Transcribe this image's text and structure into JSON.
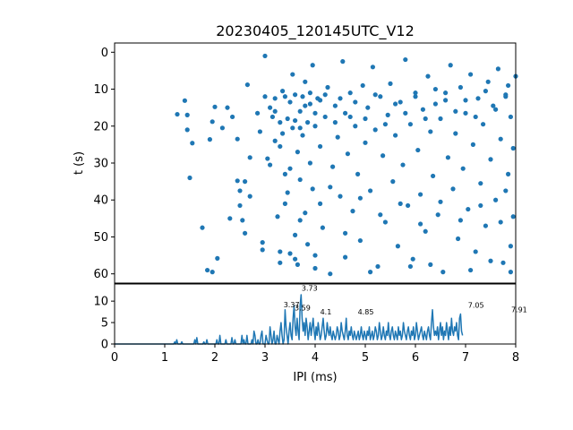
{
  "chart_data": [
    {
      "type": "scatter",
      "title": "20230405_120145UTC_V12",
      "xlabel": "",
      "ylabel": "t (s)",
      "xlim": [
        0,
        8
      ],
      "ylim": [
        62.5,
        -2.5
      ],
      "y_inverted": true,
      "yticks": [
        0,
        10,
        20,
        30,
        40,
        50,
        60
      ],
      "color": "#1f77b4",
      "points": [
        [
          1.25,
          16.8
        ],
        [
          1.4,
          13.1
        ],
        [
          1.45,
          21.0
        ],
        [
          1.5,
          34.0
        ],
        [
          1.55,
          24.6
        ],
        [
          1.45,
          17.0
        ],
        [
          1.75,
          47.5
        ],
        [
          1.85,
          59.0
        ],
        [
          1.9,
          23.6
        ],
        [
          1.95,
          59.5
        ],
        [
          1.95,
          18.8
        ],
        [
          2.0,
          14.8
        ],
        [
          2.05,
          55.8
        ],
        [
          2.15,
          20.5
        ],
        [
          2.25,
          15.0
        ],
        [
          2.3,
          45.0
        ],
        [
          2.35,
          17.5
        ],
        [
          2.45,
          23.5
        ],
        [
          2.45,
          34.8
        ],
        [
          2.5,
          41.5
        ],
        [
          2.5,
          37.5
        ],
        [
          2.55,
          45.5
        ],
        [
          2.6,
          49.0
        ],
        [
          2.6,
          35.0
        ],
        [
          2.65,
          8.8
        ],
        [
          2.7,
          39.0
        ],
        [
          2.7,
          28.5
        ],
        [
          2.85,
          16.5
        ],
        [
          2.9,
          21.5
        ],
        [
          2.95,
          53.5
        ],
        [
          2.95,
          51.5
        ],
        [
          3.0,
          12.0
        ],
        [
          3.0,
          1.0
        ],
        [
          3.05,
          28.8
        ],
        [
          3.1,
          15.0
        ],
        [
          3.1,
          30.5
        ],
        [
          3.15,
          17.5
        ],
        [
          3.2,
          24.0
        ],
        [
          3.2,
          12.5
        ],
        [
          3.25,
          44.5
        ],
        [
          3.3,
          25.5
        ],
        [
          3.3,
          54.0
        ],
        [
          3.35,
          22.0
        ],
        [
          3.35,
          10.5
        ],
        [
          3.4,
          33.0
        ],
        [
          3.4,
          41.0
        ],
        [
          3.45,
          18.0
        ],
        [
          3.45,
          38.0
        ],
        [
          3.5,
          13.5
        ],
        [
          3.5,
          54.5
        ],
        [
          3.55,
          20.5
        ],
        [
          3.55,
          6.0
        ],
        [
          3.6,
          49.5
        ],
        [
          3.6,
          11.5
        ],
        [
          3.65,
          27.0
        ],
        [
          3.65,
          57.5
        ],
        [
          3.7,
          16.0
        ],
        [
          3.7,
          34.5
        ],
        [
          3.75,
          12.0
        ],
        [
          3.75,
          22.5
        ],
        [
          3.8,
          8.0
        ],
        [
          3.8,
          43.5
        ],
        [
          3.85,
          19.0
        ],
        [
          3.85,
          52.0
        ],
        [
          3.9,
          30.0
        ],
        [
          3.9,
          14.0
        ],
        [
          3.95,
          37.0
        ],
        [
          3.95,
          3.5
        ],
        [
          4.0,
          20.0
        ],
        [
          4.0,
          55.0
        ],
        [
          4.05,
          12.5
        ],
        [
          4.1,
          25.5
        ],
        [
          4.15,
          47.5
        ],
        [
          4.2,
          17.5
        ],
        [
          4.25,
          9.5
        ],
        [
          4.3,
          60.0
        ],
        [
          4.35,
          31.0
        ],
        [
          4.4,
          14.5
        ],
        [
          4.45,
          23.0
        ],
        [
          4.5,
          39.0
        ],
        [
          4.55,
          2.5
        ],
        [
          4.6,
          16.5
        ],
        [
          4.6,
          55.5
        ],
        [
          4.65,
          27.5
        ],
        [
          4.7,
          11.0
        ],
        [
          4.75,
          43.0
        ],
        [
          4.8,
          20.0
        ],
        [
          4.85,
          33.0
        ],
        [
          4.9,
          51.0
        ],
        [
          4.95,
          9.0
        ],
        [
          5.0,
          24.5
        ],
        [
          5.05,
          15.0
        ],
        [
          5.1,
          37.5
        ],
        [
          5.15,
          4.0
        ],
        [
          5.2,
          21.0
        ],
        [
          5.25,
          58.0
        ],
        [
          5.3,
          12.0
        ],
        [
          5.35,
          28.0
        ],
        [
          5.4,
          46.0
        ],
        [
          5.45,
          17.0
        ],
        [
          5.5,
          8.5
        ],
        [
          5.55,
          35.0
        ],
        [
          5.6,
          22.5
        ],
        [
          5.65,
          52.5
        ],
        [
          5.7,
          13.5
        ],
        [
          5.75,
          30.5
        ],
        [
          5.8,
          2.0
        ],
        [
          5.85,
          41.5
        ],
        [
          5.9,
          19.5
        ],
        [
          5.95,
          56.0
        ],
        [
          6.0,
          11.0
        ],
        [
          6.05,
          26.5
        ],
        [
          6.1,
          38.5
        ],
        [
          6.15,
          15.5
        ],
        [
          6.2,
          48.5
        ],
        [
          6.25,
          6.5
        ],
        [
          6.3,
          21.5
        ],
        [
          6.35,
          33.5
        ],
        [
          6.4,
          10.0
        ],
        [
          6.45,
          44.0
        ],
        [
          6.5,
          18.0
        ],
        [
          6.55,
          59.5
        ],
        [
          6.6,
          13.0
        ],
        [
          6.65,
          28.5
        ],
        [
          6.7,
          3.5
        ],
        [
          6.75,
          37.0
        ],
        [
          6.8,
          22.0
        ],
        [
          6.85,
          50.5
        ],
        [
          6.9,
          9.5
        ],
        [
          6.95,
          31.5
        ],
        [
          7.0,
          16.5
        ],
        [
          7.05,
          42.5
        ],
        [
          7.1,
          6.0
        ],
        [
          7.15,
          25.0
        ],
        [
          7.2,
          54.0
        ],
        [
          7.25,
          12.5
        ],
        [
          7.3,
          35.5
        ],
        [
          7.35,
          19.5
        ],
        [
          7.4,
          47.0
        ],
        [
          7.45,
          8.0
        ],
        [
          7.5,
          29.0
        ],
        [
          7.55,
          14.5
        ],
        [
          7.6,
          40.0
        ],
        [
          7.65,
          4.5
        ],
        [
          7.7,
          23.5
        ],
        [
          7.75,
          57.0
        ],
        [
          7.8,
          11.5
        ],
        [
          7.85,
          33.0
        ],
        [
          7.9,
          17.5
        ],
        [
          7.95,
          44.5
        ],
        [
          8.0,
          6.5
        ],
        [
          7.95,
          26.0
        ],
        [
          7.9,
          52.5
        ],
        [
          7.85,
          9.0
        ],
        [
          7.8,
          37.5
        ],
        [
          3.2,
          16.0
        ],
        [
          3.3,
          19.0
        ],
        [
          3.4,
          12.0
        ],
        [
          3.6,
          18.5
        ],
        [
          3.7,
          20.5
        ],
        [
          3.8,
          14.5
        ],
        [
          3.9,
          11.0
        ],
        [
          4.0,
          16.5
        ],
        [
          4.1,
          13.0
        ],
        [
          4.2,
          11.5
        ],
        [
          4.4,
          19.0
        ],
        [
          4.5,
          12.5
        ],
        [
          4.7,
          17.5
        ],
        [
          4.8,
          13.5
        ],
        [
          5.0,
          18.0
        ],
        [
          5.2,
          11.5
        ],
        [
          5.4,
          19.5
        ],
        [
          5.6,
          14.0
        ],
        [
          5.8,
          16.5
        ],
        [
          6.0,
          12.0
        ],
        [
          6.2,
          18.0
        ],
        [
          6.4,
          14.0
        ],
        [
          6.6,
          11.0
        ],
        [
          6.8,
          16.0
        ],
        [
          7.0,
          13.0
        ],
        [
          7.2,
          17.5
        ],
        [
          7.4,
          10.5
        ],
        [
          7.6,
          15.5
        ],
        [
          7.8,
          12.0
        ],
        [
          3.5,
          31.5
        ],
        [
          3.7,
          45.5
        ],
        [
          4.1,
          41.0
        ],
        [
          4.3,
          36.5
        ],
        [
          4.6,
          49.0
        ],
        [
          4.9,
          39.5
        ],
        [
          5.3,
          44.0
        ],
        [
          5.7,
          41.0
        ],
        [
          6.1,
          46.5
        ],
        [
          6.5,
          40.5
        ],
        [
          6.9,
          45.5
        ],
        [
          7.3,
          41.5
        ],
        [
          7.7,
          46.0
        ],
        [
          3.3,
          57.0
        ],
        [
          3.6,
          56.0
        ],
        [
          4.0,
          58.5
        ],
        [
          5.1,
          59.5
        ],
        [
          5.9,
          58.0
        ],
        [
          6.3,
          57.5
        ],
        [
          7.1,
          59.0
        ],
        [
          7.5,
          56.5
        ],
        [
          7.9,
          59.5
        ]
      ]
    },
    {
      "type": "line",
      "title": "",
      "xlabel": "IPI (ms)",
      "ylabel": "",
      "xlim": [
        0,
        8
      ],
      "ylim": [
        0,
        14
      ],
      "xticks": [
        0,
        1,
        2,
        3,
        4,
        5,
        6,
        7,
        8
      ],
      "yticks": [
        0,
        5,
        10
      ],
      "color": "#1f77b4",
      "x_step": 0.02,
      "values": [
        0,
        0,
        0,
        0,
        0,
        0,
        0,
        0,
        0,
        0,
        0,
        0,
        0,
        0,
        0,
        0,
        0,
        0,
        0,
        0,
        0,
        0,
        0,
        0,
        0,
        0,
        0,
        0,
        0,
        0,
        0,
        0,
        0,
        0,
        0,
        0,
        0,
        0,
        0,
        0,
        0,
        0,
        0,
        0,
        0,
        0,
        0,
        0,
        0,
        0,
        0,
        0,
        0,
        0,
        0,
        0,
        0,
        0,
        0,
        0,
        0.5,
        0,
        1,
        0,
        0,
        0,
        0,
        0.5,
        0,
        0,
        0,
        0,
        0,
        0,
        0,
        0,
        0,
        0,
        0,
        0,
        1,
        0,
        1.5,
        0,
        0,
        0,
        0,
        0,
        0,
        0.5,
        0,
        0,
        1,
        0,
        0,
        0,
        0,
        0,
        0,
        0,
        0,
        0,
        1,
        0,
        0,
        2,
        0,
        0,
        0,
        0,
        0,
        1,
        0,
        0,
        0,
        0,
        0,
        1.5,
        0,
        0,
        1,
        0,
        0,
        0,
        0,
        0,
        0,
        2,
        0,
        1,
        0,
        0,
        2,
        0,
        0,
        0,
        0,
        1,
        0,
        3,
        2,
        0,
        0,
        1,
        0,
        0,
        2,
        3,
        0,
        0,
        0,
        2,
        1,
        0,
        0,
        4,
        2,
        0,
        1,
        3,
        0,
        0,
        2,
        1,
        0,
        3,
        5,
        2,
        0,
        1,
        8,
        4,
        2,
        0,
        3,
        5,
        2,
        1,
        6,
        9,
        4,
        2,
        6,
        3,
        1,
        9,
        11.5,
        6,
        3,
        5,
        2,
        6,
        4,
        1,
        3,
        5,
        2,
        4,
        6,
        3,
        1,
        4,
        2,
        5,
        3,
        1,
        2,
        4,
        6,
        3,
        1,
        2,
        5,
        3,
        2,
        4,
        2,
        1,
        3,
        2,
        1,
        2,
        4,
        3,
        1,
        2,
        5,
        3,
        2,
        1,
        3,
        6,
        2,
        1,
        3,
        2,
        4,
        2,
        1,
        3,
        2,
        1,
        2,
        3,
        1,
        2,
        4,
        2,
        1,
        3,
        2,
        1,
        3,
        2,
        4,
        1,
        2,
        3,
        1,
        2,
        4,
        3,
        1,
        2,
        5,
        3,
        1,
        2,
        4,
        2,
        1,
        3,
        2,
        5,
        2,
        1,
        3,
        4,
        2,
        1,
        3,
        2,
        1,
        4,
        2,
        3,
        1,
        2,
        5,
        3,
        2,
        1,
        3,
        4,
        2,
        1,
        3,
        2,
        4,
        1,
        2,
        5,
        3,
        1,
        2,
        3,
        4,
        2,
        1,
        3,
        2,
        1,
        3,
        4,
        2,
        1,
        5,
        8,
        4,
        2,
        3,
        2,
        4,
        1,
        3,
        5,
        2,
        4,
        1,
        3,
        2,
        5,
        3,
        1,
        4,
        2,
        6,
        3,
        2,
        4,
        3,
        5,
        2,
        1,
        6,
        7,
        3,
        2
      ],
      "annotations": [
        {
          "x": 3.37,
          "y": 8.2,
          "text": "3.37"
        },
        {
          "x": 3.59,
          "y": 7.4,
          "text": "3.59"
        },
        {
          "x": 3.73,
          "y": 12.0,
          "text": "3.73"
        },
        {
          "x": 4.1,
          "y": 6.5,
          "text": "4.1"
        },
        {
          "x": 4.85,
          "y": 6.5,
          "text": "4.85"
        },
        {
          "x": 7.05,
          "y": 8.0,
          "text": "7.05"
        },
        {
          "x": 7.91,
          "y": 7.0,
          "text": "7.91"
        }
      ]
    }
  ]
}
